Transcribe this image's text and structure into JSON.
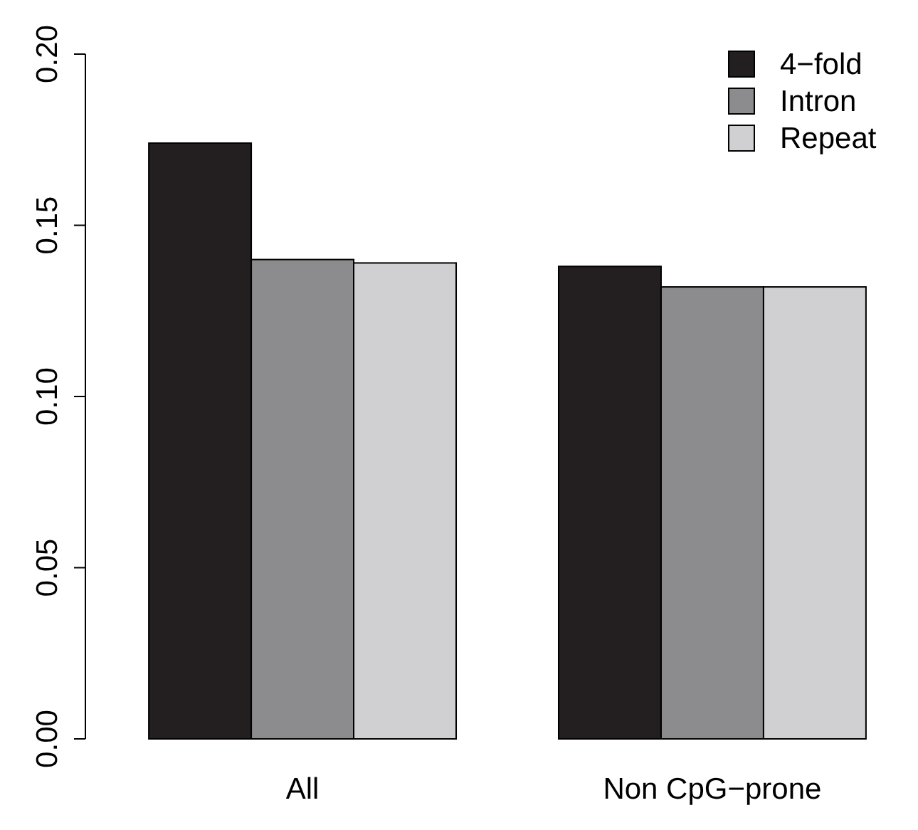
{
  "chart_data": {
    "type": "bar",
    "categories": [
      "All",
      "Non CpG−prone"
    ],
    "series": [
      {
        "name": "4−fold",
        "color": "#231f20",
        "values": [
          0.174,
          0.138
        ]
      },
      {
        "name": "Intron",
        "color": "#8c8c8e",
        "values": [
          0.14,
          0.132
        ]
      },
      {
        "name": "Repeat",
        "color": "#d0d0d2",
        "values": [
          0.139,
          0.132
        ]
      }
    ],
    "ylim": [
      0,
      0.2
    ],
    "yticks": [
      {
        "value": 0,
        "label": "0.00"
      },
      {
        "value": 0.05,
        "label": "0.05"
      },
      {
        "value": 0.1,
        "label": "0.10"
      },
      {
        "value": 0.15,
        "label": "0.15"
      },
      {
        "value": 0.2,
        "label": "0.20"
      }
    ],
    "legend": "top right",
    "grid": false
  }
}
